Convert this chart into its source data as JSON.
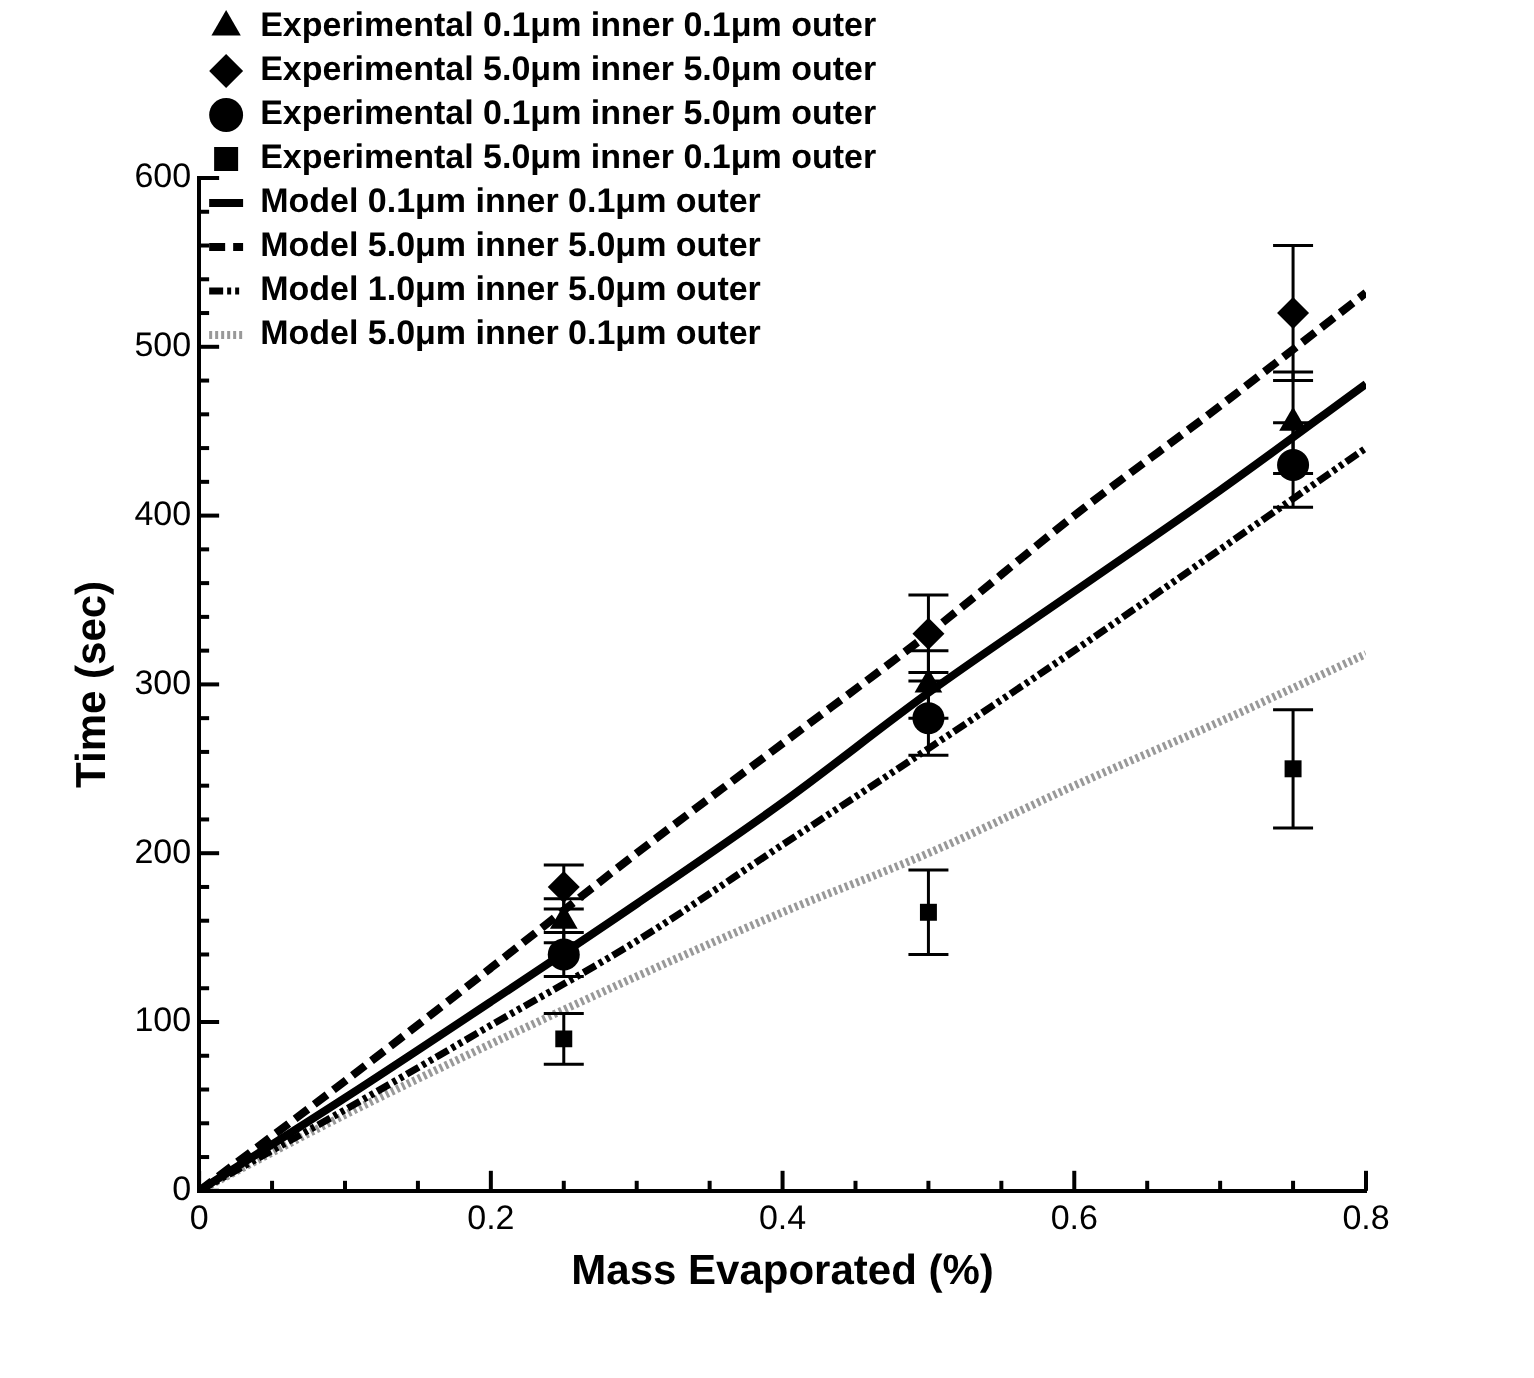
{
  "chart_data": {
    "type": "line",
    "xlabel": "Mass Evaporated (%)",
    "ylabel": "Time (sec)",
    "xlim": [
      0,
      0.8
    ],
    "ylim": [
      0,
      600
    ],
    "xticks": [
      0,
      {
        "value": 0.05,
        "label": null
      },
      {
        "value": 0.1,
        "label": null
      },
      {
        "value": 0.15,
        "label": null
      },
      0.2,
      {
        "value": 0.25,
        "label": null
      },
      {
        "value": 0.3,
        "label": null
      },
      {
        "value": 0.35,
        "label": null
      },
      0.4,
      {
        "value": 0.45,
        "label": null
      },
      {
        "value": 0.5,
        "label": null
      },
      {
        "value": 0.55,
        "label": null
      },
      0.6,
      {
        "value": 0.65,
        "label": null
      },
      {
        "value": 0.7,
        "label": null
      },
      {
        "value": 0.75,
        "label": null
      },
      0.8
    ],
    "yticks": [
      0,
      {
        "value": 20,
        "label": null
      },
      {
        "value": 40,
        "label": null
      },
      {
        "value": 60,
        "label": null
      },
      {
        "value": 80,
        "label": null
      },
      100,
      {
        "value": 120,
        "label": null
      },
      {
        "value": 140,
        "label": null
      },
      {
        "value": 160,
        "label": null
      },
      {
        "value": 180,
        "label": null
      },
      200,
      {
        "value": 220,
        "label": null
      },
      {
        "value": 240,
        "label": null
      },
      {
        "value": 260,
        "label": null
      },
      {
        "value": 280,
        "label": null
      },
      300,
      {
        "value": 320,
        "label": null
      },
      {
        "value": 340,
        "label": null
      },
      {
        "value": 360,
        "label": null
      },
      {
        "value": 380,
        "label": null
      },
      400,
      {
        "value": 420,
        "label": null
      },
      {
        "value": 440,
        "label": null
      },
      {
        "value": 460,
        "label": null
      },
      {
        "value": 480,
        "label": null
      },
      500,
      {
        "value": 520,
        "label": null
      },
      {
        "value": 540,
        "label": null
      },
      {
        "value": 560,
        "label": null
      },
      {
        "value": 580,
        "label": null
      },
      600
    ],
    "grid": false,
    "legend": "top left",
    "series": [
      {
        "name": "Experimental 0.1μm inner 0.1μm outer",
        "type": "scatter",
        "marker": "triangle",
        "color": "#000000",
        "x": [
          0.25,
          0.5,
          0.75
        ],
        "values": [
          160,
          300,
          455
        ],
        "errors": [
          13,
          20,
          30
        ]
      },
      {
        "name": "Experimental 5.0μm inner 5.0μm outer",
        "type": "scatter",
        "marker": "diamond",
        "color": "#000000",
        "x": [
          0.25,
          0.5,
          0.75
        ],
        "values": [
          180,
          330,
          520
        ],
        "errors": [
          13,
          23,
          40
        ]
      },
      {
        "name": "Experimental 0.1μm inner 5.0μm outer",
        "type": "scatter",
        "marker": "circle",
        "color": "#000000",
        "x": [
          0.25,
          0.5,
          0.75
        ],
        "values": [
          140,
          280,
          430
        ],
        "errors": [
          13,
          22,
          25
        ]
      },
      {
        "name": "Experimental 5.0μm inner 0.1μm outer",
        "type": "scatter",
        "marker": "square",
        "color": "#000000",
        "x": [
          0.25,
          0.5,
          0.75
        ],
        "values": [
          90,
          165,
          250
        ],
        "errors": [
          15,
          25,
          35
        ]
      },
      {
        "name": "Model 0.1μm inner 0.1μm outer",
        "line_style": "solid",
        "color": "#000000",
        "x": [
          0,
          0.1,
          0.2,
          0.3,
          0.4,
          0.5,
          0.6,
          0.7,
          0.8
        ],
        "values": [
          0,
          55,
          112,
          170,
          230,
          295,
          355,
          415,
          478
        ]
      },
      {
        "name": "Model 5.0μm inner 5.0μm outer",
        "line_style": "dashed",
        "color": "#000000",
        "x": [
          0,
          0.1,
          0.2,
          0.3,
          0.4,
          0.5,
          0.6,
          0.7,
          0.8
        ],
        "values": [
          0,
          65,
          132,
          200,
          265,
          330,
          400,
          465,
          532
        ]
      },
      {
        "name": "Model 1.0μm inner 5.0μm outer",
        "line_style": "dashdot",
        "color": "#000000",
        "x": [
          0,
          0.1,
          0.2,
          0.3,
          0.4,
          0.5,
          0.6,
          0.7,
          0.8
        ],
        "values": [
          0,
          48,
          98,
          148,
          205,
          262,
          320,
          380,
          440
        ]
      },
      {
        "name": "Model 5.0μm inner 0.1μm outer",
        "line_style": "dotted",
        "color": "#999999",
        "x": [
          0,
          0.1,
          0.2,
          0.3,
          0.4,
          0.5,
          0.6,
          0.7,
          0.8
        ],
        "values": [
          0,
          45,
          87,
          127,
          165,
          200,
          240,
          278,
          318
        ]
      }
    ]
  }
}
